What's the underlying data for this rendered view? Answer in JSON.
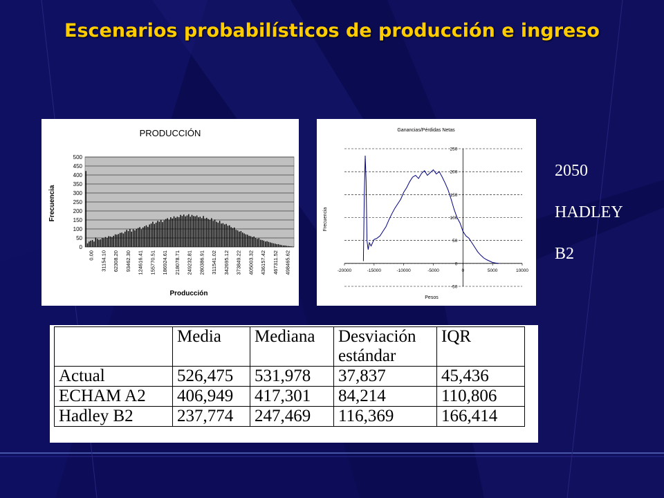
{
  "slide": {
    "title": "Escenarios probabilísticos de producción e ingreso",
    "scenario": [
      "2050",
      "HADLEY",
      "B2"
    ]
  },
  "table": {
    "headers": [
      "",
      "Media",
      "Mediana",
      "Desviación estándar",
      "IQR"
    ],
    "rows": [
      [
        "Actual",
        "526,475",
        "531,978",
        "37,837",
        "45,436"
      ],
      [
        "ECHAM A2",
        "406,949",
        "417,301",
        "84,214",
        "110,806"
      ],
      [
        "Hadley B2",
        "237,774",
        "247,469",
        "116,369",
        "166,414"
      ]
    ]
  },
  "chart_data": [
    {
      "type": "bar",
      "title": "PRODUCCIÓN",
      "xlabel": "Producción",
      "ylabel": "Frecuencia",
      "ylim": [
        0,
        500
      ],
      "yticks": [
        0,
        50,
        100,
        150,
        200,
        250,
        300,
        350,
        400,
        450,
        500
      ],
      "grid": true,
      "xtick_labels": [
        "0.00",
        "31154.10",
        "62308.20",
        "93462.30",
        "124616.41",
        "155770.51",
        "186924.61",
        "218078.71",
        "249232.81",
        "280386.91",
        "311541.02",
        "342695.12",
        "373849.22",
        "405003.32",
        "436157.42",
        "467311.52",
        "498465.62"
      ],
      "bar_color": "#000000",
      "values": [
        422,
        20,
        30,
        35,
        38,
        30,
        52,
        45,
        40,
        42,
        50,
        48,
        55,
        50,
        60,
        58,
        55,
        62,
        70,
        68,
        72,
        78,
        80,
        75,
        85,
        95,
        88,
        100,
        85,
        98,
        92,
        100,
        105,
        110,
        98,
        108,
        115,
        120,
        112,
        125,
        130,
        140,
        128,
        135,
        145,
        140,
        150,
        138,
        148,
        155,
        160,
        152,
        165,
        158,
        170,
        162,
        168,
        165,
        178,
        172,
        180,
        170,
        175,
        182,
        168,
        178,
        172,
        170,
        175,
        165,
        168,
        160,
        172,
        158,
        162,
        155,
        150,
        160,
        145,
        152,
        140,
        135,
        145,
        130,
        132,
        125,
        128,
        118,
        120,
        110,
        105,
        108,
        95,
        92,
        85,
        88,
        80,
        75,
        70,
        68,
        62,
        60,
        55,
        58,
        50,
        45,
        48,
        40,
        38,
        35,
        30,
        32,
        28,
        25,
        22,
        20,
        18,
        15,
        15,
        12,
        10,
        8,
        8,
        6,
        5,
        4,
        3,
        2
      ]
    },
    {
      "type": "line",
      "title": "Ganancias/Pérdidas Netas",
      "xlabel": "Pesos",
      "ylabel": "Frecuencia",
      "xlim": [
        -20000,
        10000
      ],
      "ylim": [
        -50,
        250
      ],
      "xticks": [
        -20000,
        -15000,
        -10000,
        -5000,
        0,
        5000,
        10000
      ],
      "yticks": [
        -50,
        0,
        50,
        100,
        150,
        200,
        250
      ],
      "grid": true,
      "line_color": "#000080",
      "x": [
        -16800,
        -16650,
        -16500,
        -16350,
        -16200,
        -16100,
        -16000,
        -15800,
        -15500,
        -15000,
        -14500,
        -14000,
        -13500,
        -13000,
        -12500,
        -12000,
        -11500,
        -11000,
        -10500,
        -10000,
        -9500,
        -9000,
        -8500,
        -8000,
        -7500,
        -7000,
        -6500,
        -6000,
        -5500,
        -5000,
        -4500,
        -4000,
        -3500,
        -3000,
        -2500,
        -2000,
        -1500,
        -1000,
        -500,
        0,
        500,
        1000,
        1500,
        2000,
        2500,
        3000,
        3500,
        4000,
        4500,
        5000,
        5500,
        6000
      ],
      "y": [
        5,
        150,
        235,
        180,
        50,
        40,
        30,
        45,
        38,
        52,
        55,
        60,
        70,
        80,
        95,
        108,
        120,
        130,
        140,
        155,
        165,
        178,
        188,
        192,
        185,
        196,
        202,
        192,
        198,
        204,
        195,
        200,
        188,
        175,
        160,
        140,
        118,
        100,
        88,
        70,
        60,
        55,
        45,
        35,
        25,
        18,
        12,
        8,
        5,
        2,
        1,
        0
      ]
    }
  ]
}
